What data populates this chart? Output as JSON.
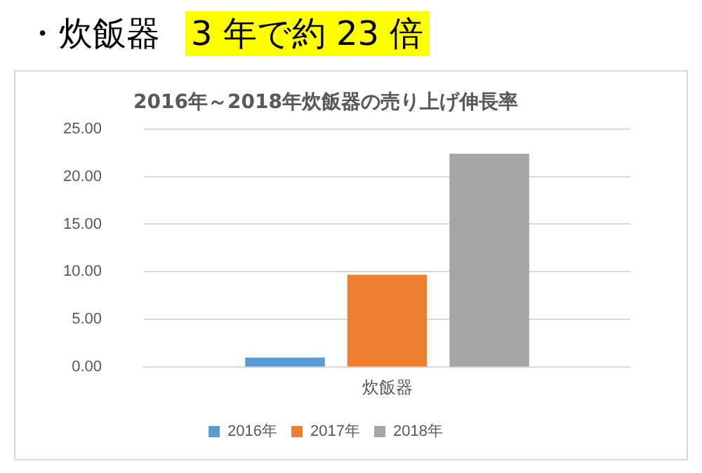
{
  "chart_data": {
    "type": "bar",
    "title": "2016年～2018年炊飯器の売り上げ伸長率",
    "annotations": [
      "・炊飯器",
      "3 年で約 23 倍"
    ],
    "categories": [
      "炊飯器"
    ],
    "series": [
      {
        "name": "2016年",
        "color": "#5b9bd5",
        "values": [
          1.0
        ]
      },
      {
        "name": "2017年",
        "color": "#ed7d31",
        "values": [
          9.7
        ]
      },
      {
        "name": "2018年",
        "color": "#a5a5a5",
        "values": [
          22.4
        ]
      }
    ],
    "ylim": [
      0,
      25
    ],
    "yticks": [
      {
        "value": 0,
        "label": "0.00"
      },
      {
        "value": 5,
        "label": "5.00"
      },
      {
        "value": 10,
        "label": "10.00"
      },
      {
        "value": 15,
        "label": "15.00"
      },
      {
        "value": 20,
        "label": "20.00"
      },
      {
        "value": 25,
        "label": "25.00"
      }
    ],
    "grid": "y",
    "legend": "bottom"
  }
}
